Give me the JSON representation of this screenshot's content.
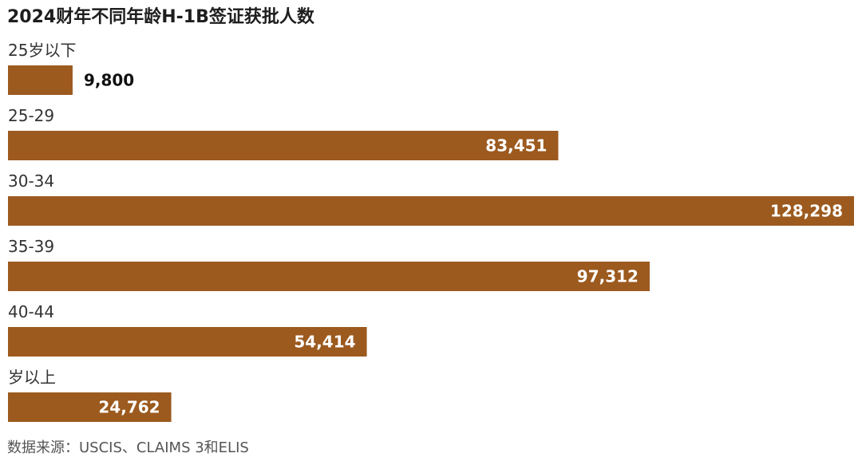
{
  "chart_data": {
    "type": "bar",
    "orientation": "horizontal",
    "title": "2024财年不同年龄H-1B签证获批人数",
    "categories": [
      "25岁以下",
      "25-29",
      "30-34",
      "35-39",
      "40-44",
      "岁以上"
    ],
    "values": [
      9800,
      83451,
      128298,
      97312,
      54414,
      24762
    ],
    "value_labels": [
      "9,800",
      "83,451",
      "128,298",
      "97,312",
      "54,414",
      "24,762"
    ],
    "bar_color": "#9c5a1f",
    "source": "数据来源：USCIS、CLAIMS 3和ELIS",
    "xlim": [
      0,
      128298
    ],
    "grid": false,
    "legend": "none"
  }
}
